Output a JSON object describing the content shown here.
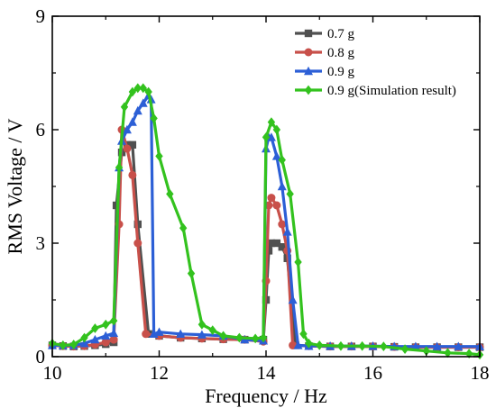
{
  "chart_data": {
    "type": "line",
    "xlabel": "Frequency / Hz",
    "ylabel": "RMS Voltage / V",
    "xlim": [
      10,
      18
    ],
    "ylim": [
      0,
      9
    ],
    "xticks": [
      10,
      12,
      14,
      16,
      18
    ],
    "yticks": [
      0,
      3,
      6,
      9
    ],
    "grid": false,
    "legend_position": "top-right",
    "series": [
      {
        "name": "0.7 g",
        "color": "#505050",
        "marker": "square",
        "points": [
          [
            10.0,
            0.3
          ],
          [
            10.2,
            0.28
          ],
          [
            10.4,
            0.27
          ],
          [
            10.6,
            0.28
          ],
          [
            10.8,
            0.3
          ],
          [
            11.0,
            0.33
          ],
          [
            11.15,
            0.38
          ],
          [
            11.2,
            4.0
          ],
          [
            11.3,
            5.4
          ],
          [
            11.4,
            5.6
          ],
          [
            11.5,
            5.6
          ],
          [
            11.6,
            3.5
          ],
          [
            11.8,
            0.6
          ],
          [
            12.0,
            0.55
          ],
          [
            12.4,
            0.5
          ],
          [
            12.8,
            0.48
          ],
          [
            13.2,
            0.46
          ],
          [
            13.6,
            0.45
          ],
          [
            13.95,
            0.45
          ],
          [
            14.0,
            1.5
          ],
          [
            14.05,
            2.8
          ],
          [
            14.1,
            3.0
          ],
          [
            14.2,
            3.0
          ],
          [
            14.3,
            2.9
          ],
          [
            14.4,
            2.6
          ],
          [
            14.55,
            0.3
          ],
          [
            14.8,
            0.28
          ],
          [
            15.2,
            0.27
          ],
          [
            15.6,
            0.27
          ],
          [
            16.0,
            0.27
          ],
          [
            16.4,
            0.26
          ],
          [
            16.8,
            0.25
          ],
          [
            17.2,
            0.25
          ],
          [
            17.6,
            0.25
          ],
          [
            18.0,
            0.25
          ]
        ]
      },
      {
        "name": "0.8 g",
        "color": "#c8504a",
        "marker": "circle",
        "points": [
          [
            10.0,
            0.3
          ],
          [
            10.2,
            0.28
          ],
          [
            10.4,
            0.27
          ],
          [
            10.6,
            0.28
          ],
          [
            10.8,
            0.32
          ],
          [
            11.0,
            0.38
          ],
          [
            11.15,
            0.45
          ],
          [
            11.25,
            3.5
          ],
          [
            11.3,
            6.0
          ],
          [
            11.4,
            5.5
          ],
          [
            11.5,
            4.8
          ],
          [
            11.6,
            3.0
          ],
          [
            11.75,
            0.6
          ],
          [
            12.0,
            0.55
          ],
          [
            12.4,
            0.5
          ],
          [
            12.8,
            0.48
          ],
          [
            13.2,
            0.46
          ],
          [
            13.6,
            0.45
          ],
          [
            13.95,
            0.4
          ],
          [
            14.0,
            2.0
          ],
          [
            14.05,
            4.0
          ],
          [
            14.1,
            4.2
          ],
          [
            14.2,
            4.0
          ],
          [
            14.3,
            3.5
          ],
          [
            14.4,
            2.8
          ],
          [
            14.5,
            0.3
          ],
          [
            14.8,
            0.28
          ],
          [
            15.2,
            0.27
          ],
          [
            15.6,
            0.27
          ],
          [
            16.0,
            0.27
          ],
          [
            16.4,
            0.26
          ],
          [
            16.8,
            0.25
          ],
          [
            17.2,
            0.25
          ],
          [
            17.6,
            0.25
          ],
          [
            18.0,
            0.25
          ]
        ]
      },
      {
        "name": "0.9 g",
        "color": "#2c5fd6",
        "marker": "triangle",
        "points": [
          [
            10.0,
            0.3
          ],
          [
            10.2,
            0.3
          ],
          [
            10.4,
            0.3
          ],
          [
            10.6,
            0.35
          ],
          [
            10.8,
            0.45
          ],
          [
            11.0,
            0.55
          ],
          [
            11.15,
            0.62
          ],
          [
            11.25,
            5.0
          ],
          [
            11.3,
            5.7
          ],
          [
            11.4,
            6.0
          ],
          [
            11.5,
            6.2
          ],
          [
            11.6,
            6.5
          ],
          [
            11.7,
            6.7
          ],
          [
            11.8,
            6.9
          ],
          [
            11.85,
            6.8
          ],
          [
            11.9,
            0.6
          ],
          [
            12.0,
            0.65
          ],
          [
            12.4,
            0.6
          ],
          [
            12.8,
            0.58
          ],
          [
            13.2,
            0.55
          ],
          [
            13.6,
            0.45
          ],
          [
            13.95,
            0.42
          ],
          [
            14.0,
            5.5
          ],
          [
            14.05,
            5.8
          ],
          [
            14.1,
            5.8
          ],
          [
            14.2,
            5.3
          ],
          [
            14.3,
            4.5
          ],
          [
            14.4,
            3.3
          ],
          [
            14.5,
            1.5
          ],
          [
            14.6,
            0.3
          ],
          [
            14.8,
            0.28
          ],
          [
            15.2,
            0.28
          ],
          [
            15.6,
            0.28
          ],
          [
            16.0,
            0.28
          ],
          [
            16.4,
            0.27
          ],
          [
            16.8,
            0.27
          ],
          [
            17.2,
            0.27
          ],
          [
            17.6,
            0.27
          ],
          [
            18.0,
            0.27
          ]
        ]
      },
      {
        "name": "0.9 g(Simulation result)",
        "color": "#33c21e",
        "marker": "diamond",
        "points": [
          [
            10.0,
            0.35
          ],
          [
            10.2,
            0.3
          ],
          [
            10.4,
            0.32
          ],
          [
            10.6,
            0.5
          ],
          [
            10.8,
            0.75
          ],
          [
            11.0,
            0.85
          ],
          [
            11.15,
            0.95
          ],
          [
            11.25,
            5.0
          ],
          [
            11.35,
            6.6
          ],
          [
            11.5,
            7.0
          ],
          [
            11.6,
            7.1
          ],
          [
            11.7,
            7.1
          ],
          [
            11.8,
            7.0
          ],
          [
            11.9,
            6.3
          ],
          [
            12.0,
            5.3
          ],
          [
            12.2,
            4.3
          ],
          [
            12.45,
            3.4
          ],
          [
            12.6,
            2.2
          ],
          [
            12.8,
            0.85
          ],
          [
            13.0,
            0.7
          ],
          [
            13.2,
            0.55
          ],
          [
            13.5,
            0.5
          ],
          [
            13.8,
            0.48
          ],
          [
            13.95,
            0.5
          ],
          [
            14.0,
            5.8
          ],
          [
            14.1,
            6.2
          ],
          [
            14.2,
            6.0
          ],
          [
            14.3,
            5.2
          ],
          [
            14.45,
            4.3
          ],
          [
            14.6,
            2.5
          ],
          [
            14.7,
            0.6
          ],
          [
            14.8,
            0.35
          ],
          [
            15.0,
            0.3
          ],
          [
            15.4,
            0.28
          ],
          [
            15.8,
            0.28
          ],
          [
            16.2,
            0.27
          ],
          [
            16.6,
            0.2
          ],
          [
            17.0,
            0.15
          ],
          [
            17.4,
            0.1
          ],
          [
            17.8,
            0.08
          ],
          [
            18.0,
            0.05
          ]
        ]
      }
    ]
  }
}
